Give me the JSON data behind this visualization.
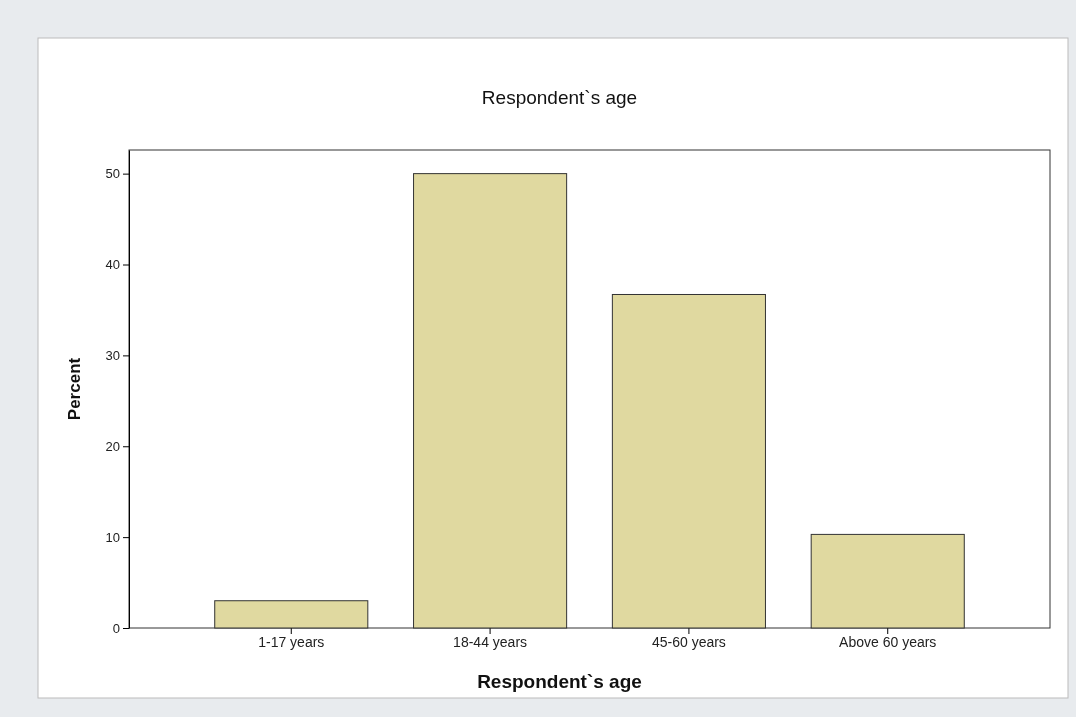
{
  "chart_data": {
    "type": "bar",
    "title": "Respondent`s age",
    "xlabel": "Respondent`s age",
    "ylabel": "Percent",
    "categories": [
      "1-17 years",
      "18-44 years",
      "45-60 years",
      "Above 60 years"
    ],
    "values": [
      3.0,
      50.0,
      36.7,
      10.3
    ],
    "color": "#e0d9a0",
    "ylim": [
      0,
      52.6
    ],
    "yticks": [
      0,
      10,
      20,
      30,
      40,
      50
    ],
    "grid": false
  }
}
